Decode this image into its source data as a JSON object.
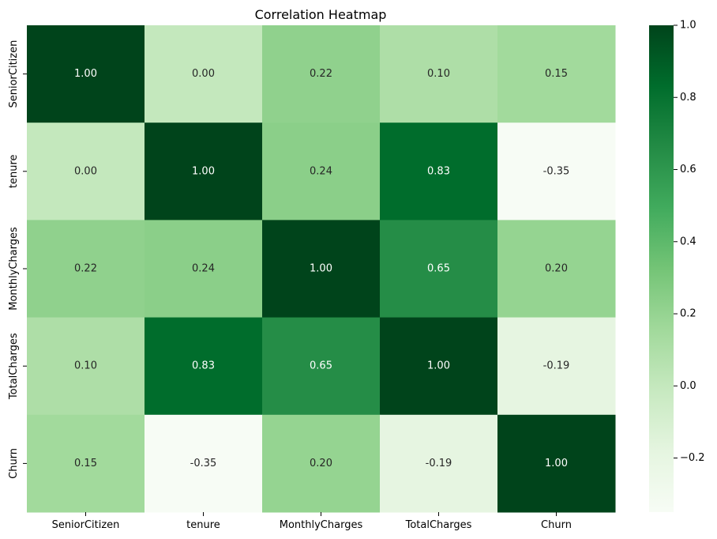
{
  "chart_data": {
    "type": "heatmap",
    "title": "Correlation Heatmap",
    "xlabel": "",
    "ylabel": "",
    "labels": [
      "SeniorCitizen",
      "tenure",
      "MonthlyCharges",
      "TotalCharges",
      "Churn"
    ],
    "matrix": [
      [
        1.0,
        0.0,
        0.22,
        0.1,
        0.15
      ],
      [
        0.0,
        1.0,
        0.24,
        0.83,
        -0.35
      ],
      [
        0.22,
        0.24,
        1.0,
        0.65,
        0.2
      ],
      [
        0.1,
        0.83,
        0.65,
        1.0,
        -0.19
      ],
      [
        0.15,
        -0.35,
        0.2,
        -0.19,
        1.0
      ]
    ],
    "cell_labels": [
      [
        "1.00",
        "0.00",
        "0.22",
        "0.10",
        "0.15"
      ],
      [
        "0.00",
        "1.00",
        "0.24",
        "0.83",
        "-0.35"
      ],
      [
        "0.22",
        "0.24",
        "1.00",
        "0.65",
        "0.20"
      ],
      [
        "0.10",
        "0.83",
        "0.65",
        "1.00",
        "-0.19"
      ],
      [
        "0.15",
        "-0.35",
        "0.20",
        "-0.19",
        "1.00"
      ]
    ],
    "colormap": "Greens",
    "colormap_stops": [
      "#f7fcf5",
      "#e5f5e0",
      "#c7e9c0",
      "#a1d99b",
      "#74c476",
      "#41ab5d",
      "#238b45",
      "#006d2c",
      "#00441b"
    ],
    "vmin": -0.35,
    "vmax": 1.0,
    "colorbar_ticks": [
      1.0,
      0.8,
      0.6,
      0.4,
      0.2,
      0.0,
      -0.2
    ],
    "colorbar_tick_labels": [
      "1.0",
      "0.8",
      "0.6",
      "0.4",
      "0.2",
      "0.0",
      "−0.2"
    ]
  }
}
